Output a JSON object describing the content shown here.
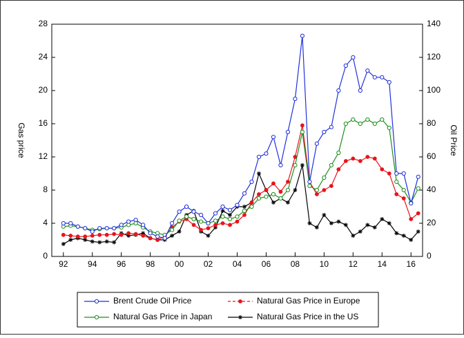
{
  "chart_data": {
    "type": "line",
    "ylabel": "Gas price",
    "y2label": "Oil Price",
    "x": [
      1992,
      1992.5,
      1993,
      1993.5,
      1994,
      1994.5,
      1995,
      1995.5,
      1996,
      1996.5,
      1997,
      1997.5,
      1998,
      1998.5,
      1999,
      1999.5,
      2000,
      2000.5,
      2001,
      2001.5,
      2002,
      2002.5,
      2003,
      2003.5,
      2004,
      2004.5,
      2005,
      2005.5,
      2006,
      2006.5,
      2007,
      2007.5,
      2008,
      2008.5,
      2009,
      2009.5,
      2010,
      2010.5,
      2011,
      2011.5,
      2012,
      2012.5,
      2013,
      2013.5,
      2014,
      2014.5,
      2015,
      2015.5,
      2016,
      2016.5
    ],
    "xlim": [
      1991.2,
      2016.8
    ],
    "xticks": [
      {
        "value": 1992,
        "label": "92"
      },
      {
        "value": 1994,
        "label": "94"
      },
      {
        "value": 1996,
        "label": "96"
      },
      {
        "value": 1998,
        "label": "98"
      },
      {
        "value": 2000,
        "label": "00"
      },
      {
        "value": 2002,
        "label": "02"
      },
      {
        "value": 2004,
        "label": "04"
      },
      {
        "value": 2006,
        "label": "06"
      },
      {
        "value": 2008,
        "label": "08"
      },
      {
        "value": 2010,
        "label": "10"
      },
      {
        "value": 2012,
        "label": "12"
      },
      {
        "value": 2014,
        "label": "14"
      },
      {
        "value": 2016,
        "label": "16"
      }
    ],
    "ylim": [
      0,
      28
    ],
    "yticks": [
      0,
      4,
      8,
      12,
      16,
      20,
      24,
      28
    ],
    "y2lim": [
      0,
      140
    ],
    "y2ticks": [
      0,
      20,
      40,
      60,
      80,
      100,
      120,
      140
    ],
    "series": [
      {
        "name": "Brent Crude Oil Price",
        "color": "#1f2fdc",
        "marker": "open-circle",
        "axis": "y2",
        "values": [
          20,
          20,
          18,
          17,
          15,
          17,
          17,
          17,
          19,
          21,
          22,
          19,
          14,
          12,
          11,
          20,
          27,
          30,
          27,
          25,
          20,
          26,
          30,
          28,
          31,
          38,
          45,
          60,
          62,
          72,
          55,
          75,
          95,
          133,
          45,
          68,
          75,
          78,
          100,
          115,
          120,
          100,
          112,
          108,
          108,
          105,
          50,
          50,
          32,
          48
        ]
      },
      {
        "name": "Natural Gas Price in Europe",
        "color": "#e8141c",
        "marker": "dot",
        "dash": true,
        "values": [
          2.6,
          2.5,
          2.4,
          2.4,
          2.5,
          2.6,
          2.6,
          2.7,
          2.6,
          2.8,
          2.7,
          2.5,
          2.2,
          2.0,
          2.4,
          3.5,
          4.2,
          4.5,
          3.8,
          3.2,
          3.4,
          3.8,
          4.0,
          3.8,
          4.2,
          5.0,
          6.5,
          7.5,
          8.0,
          8.8,
          7.8,
          9.0,
          12.0,
          15.8,
          9.0,
          7.5,
          8.0,
          8.5,
          10.5,
          11.5,
          11.8,
          11.5,
          12.0,
          11.8,
          10.5,
          10.0,
          7.5,
          7.0,
          4.5,
          5.2
        ]
      },
      {
        "name": "Natural Gas Price in Japan",
        "color": "#1c8c1c",
        "marker": "open-circle",
        "values": [
          3.6,
          3.7,
          3.6,
          3.4,
          3.2,
          3.3,
          3.4,
          3.4,
          3.5,
          3.8,
          4.0,
          3.5,
          3.0,
          2.8,
          2.6,
          3.2,
          4.3,
          4.8,
          4.5,
          4.2,
          4.0,
          4.3,
          4.8,
          4.5,
          4.8,
          5.5,
          6.0,
          7.0,
          7.2,
          7.5,
          7.0,
          8.0,
          11,
          15,
          8.5,
          8.0,
          9.5,
          11.0,
          12.5,
          16.0,
          16.5,
          16.0,
          16.5,
          16.0,
          16.5,
          15.5,
          9.0,
          8.0,
          6.5,
          8.2
        ]
      },
      {
        "name": "Natural Gas Price in the US",
        "color": "#000000",
        "marker": "star",
        "values": [
          1.5,
          2.0,
          2.2,
          2.0,
          1.8,
          1.7,
          1.8,
          1.7,
          2.8,
          2.5,
          2.6,
          2.8,
          2.2,
          2.0,
          2.0,
          2.5,
          3.0,
          5.0,
          5.5,
          3.0,
          2.5,
          3.5,
          5.5,
          5.0,
          6.0,
          6.0,
          6.5,
          10.0,
          8.0,
          6.5,
          7.0,
          6.5,
          8.0,
          11.0,
          4.0,
          3.5,
          5.0,
          4.0,
          4.2,
          3.8,
          2.5,
          3.0,
          3.8,
          3.5,
          4.5,
          4.0,
          2.8,
          2.5,
          2.0,
          3.0
        ]
      }
    ]
  }
}
